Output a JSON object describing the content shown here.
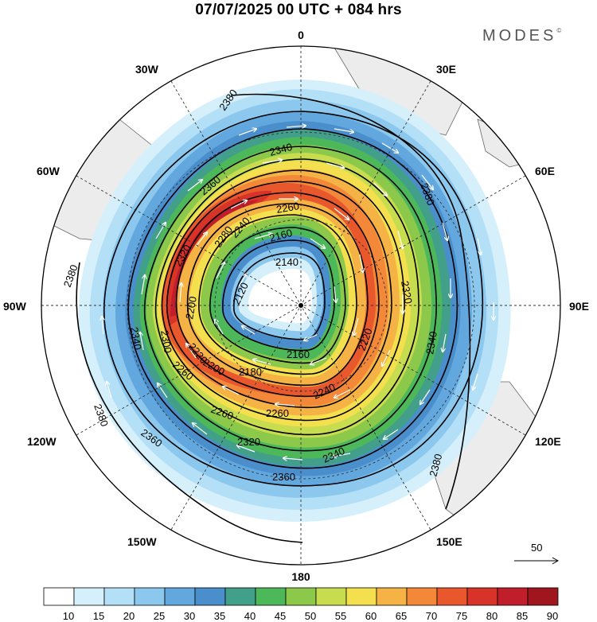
{
  "title": "07/07/2025  00 UTC  + 084 hrs",
  "brand": {
    "name": "MODES",
    "mark": "©"
  },
  "longitude_labels": [
    {
      "lon": 0,
      "text": "0"
    },
    {
      "lon": 30,
      "text": "30E"
    },
    {
      "lon": 60,
      "text": "60E"
    },
    {
      "lon": 90,
      "text": "90E"
    },
    {
      "lon": 120,
      "text": "120E"
    },
    {
      "lon": 150,
      "text": "150E"
    },
    {
      "lon": 180,
      "text": "180"
    },
    {
      "lon": -150,
      "text": "150W"
    },
    {
      "lon": -120,
      "text": "120W"
    },
    {
      "lon": -90,
      "text": "90W"
    },
    {
      "lon": -60,
      "text": "60W"
    },
    {
      "lon": -30,
      "text": "30W"
    }
  ],
  "contour_labels": [
    "2380",
    "2380",
    "2380",
    "2380",
    "2380",
    "2360",
    "2360",
    "2360",
    "2340",
    "2340",
    "2340",
    "2340",
    "2320",
    "2320",
    "2320",
    "2300",
    "2280",
    "2260",
    "2260",
    "2260",
    "2260",
    "2240",
    "2240",
    "2220",
    "2220",
    "2200",
    "2200",
    "2180",
    "2160",
    "2160",
    "2140",
    "2120"
  ],
  "wind_speed_levels": {
    "10": "#ffffff",
    "15": "#d6f0fb",
    "20": "#b4e0f7",
    "25": "#8cc8ee",
    "30": "#62a8de",
    "35": "#4a8ecc",
    "40": "#42a08a",
    "45": "#4db85a",
    "50": "#8cc84a",
    "55": "#c8dc50",
    "60": "#f4e04e",
    "65": "#f5b245",
    "70": "#f28838",
    "75": "#e8582c",
    "80": "#d83328",
    "85": "#c01e2a",
    "90": "#a0161e"
  },
  "colorbar": {
    "ticks": [
      "10",
      "15",
      "20",
      "25",
      "30",
      "35",
      "40",
      "45",
      "50",
      "55",
      "60",
      "65",
      "70",
      "75",
      "80",
      "85",
      "90"
    ],
    "colors": [
      "#ffffff",
      "#d6f0fb",
      "#b4e0f7",
      "#8cc8ee",
      "#62a8de",
      "#4a8ecc",
      "#42a08a",
      "#4db85a",
      "#8cc84a",
      "#c8dc50",
      "#f4e04e",
      "#f5b245",
      "#f28838",
      "#e8582c",
      "#d83328",
      "#c01e2a",
      "#a0161e"
    ]
  },
  "reference_vector": {
    "label": "50"
  }
}
